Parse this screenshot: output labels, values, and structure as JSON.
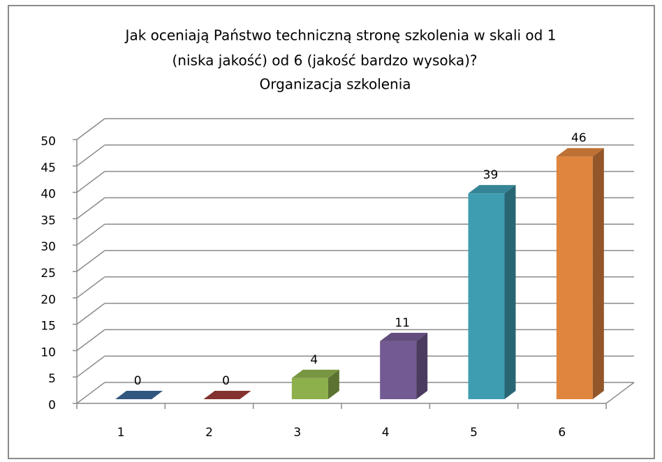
{
  "chart_data": {
    "type": "bar3d",
    "title": [
      "Jak oceniają Państwo techniczną stronę szkolenia w skali od 1",
      "(niska jakość) od 6 (jakość bardzo wysoka)?",
      "Organizacja szkolenia"
    ],
    "categories": [
      "1",
      "2",
      "3",
      "4",
      "5",
      "6"
    ],
    "values": [
      0,
      0,
      4,
      11,
      39,
      46
    ],
    "colors": [
      "#3a6596",
      "#9a3b38",
      "#8db04c",
      "#735a92",
      "#3f9db2",
      "#e0853d"
    ],
    "ylim": [
      0,
      50
    ],
    "yticks": [
      0,
      5,
      10,
      15,
      20,
      25,
      30,
      35,
      40,
      45,
      50
    ],
    "grid": true
  }
}
